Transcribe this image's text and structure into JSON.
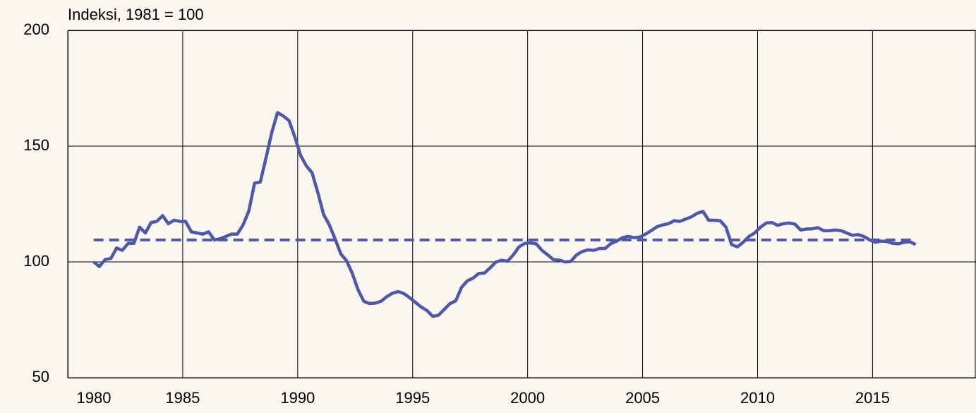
{
  "chart_data": {
    "type": "line",
    "title": "Indeksi, 1981 = 100",
    "xlim": [
      1980,
      2019.5
    ],
    "ylim": [
      50,
      200
    ],
    "xticks": [
      1980,
      1985,
      1990,
      1995,
      2000,
      2005,
      2010,
      2015
    ],
    "yticks": [
      50,
      100,
      150,
      200
    ],
    "grid": true,
    "x": [
      1981.125,
      1981.375,
      1981.625,
      1981.875,
      1982.125,
      1982.375,
      1982.625,
      1982.875,
      1983.125,
      1983.375,
      1983.625,
      1983.875,
      1984.125,
      1984.375,
      1984.625,
      1984.875,
      1985.125,
      1985.375,
      1985.625,
      1985.875,
      1986.125,
      1986.375,
      1986.625,
      1986.875,
      1987.125,
      1987.375,
      1987.625,
      1987.875,
      1988.125,
      1988.375,
      1988.625,
      1988.875,
      1989.125,
      1989.375,
      1989.625,
      1989.875,
      1990.125,
      1990.375,
      1990.625,
      1990.875,
      1991.125,
      1991.375,
      1991.625,
      1991.875,
      1992.125,
      1992.375,
      1992.625,
      1992.875,
      1993.125,
      1993.375,
      1993.625,
      1993.875,
      1994.125,
      1994.375,
      1994.625,
      1994.875,
      1995.125,
      1995.375,
      1995.625,
      1995.875,
      1996.125,
      1996.375,
      1996.625,
      1996.875,
      1997.125,
      1997.375,
      1997.625,
      1997.875,
      1998.125,
      1998.375,
      1998.625,
      1998.875,
      1999.125,
      1999.375,
      1999.625,
      1999.875,
      2000.125,
      2000.375,
      2000.625,
      2000.875,
      2001.125,
      2001.375,
      2001.625,
      2001.875,
      2002.125,
      2002.375,
      2002.625,
      2002.875,
      2003.125,
      2003.375,
      2003.625,
      2003.875,
      2004.125,
      2004.375,
      2004.625,
      2004.875,
      2005.125,
      2005.375,
      2005.625,
      2005.875,
      2006.125,
      2006.375,
      2006.625,
      2006.875,
      2007.125,
      2007.375,
      2007.625,
      2007.875,
      2008.125,
      2008.375,
      2008.625,
      2008.875,
      2009.125,
      2009.375,
      2009.625,
      2009.875,
      2010.125,
      2010.375,
      2010.625,
      2010.875,
      2011.125,
      2011.375,
      2011.625,
      2011.875,
      2012.125,
      2012.375,
      2012.625,
      2012.875,
      2013.125,
      2013.375,
      2013.625,
      2013.875,
      2014.125,
      2014.375,
      2014.625,
      2014.875,
      2015.125,
      2015.375,
      2015.625,
      2015.875,
      2016.125,
      2016.375,
      2016.625,
      2016.875
    ],
    "series": [
      {
        "color": "#4f58a6",
        "values": [
          100,
          98,
          101,
          101.5,
          106,
          105,
          108,
          108,
          115,
          112.5,
          117,
          117.5,
          120,
          116.5,
          118,
          117.5,
          117.5,
          113,
          112.5,
          112,
          113,
          109.5,
          110,
          111,
          112,
          112,
          116,
          122,
          134,
          134.5,
          145,
          156,
          164.5,
          163,
          161,
          154,
          146,
          141.5,
          138.5,
          130,
          120.5,
          116,
          110,
          103.5,
          100.5,
          95,
          88,
          83,
          82,
          82.2,
          83,
          85,
          86.5,
          87.2,
          86.3,
          84.5,
          82.5,
          80.5,
          79,
          76.5,
          77,
          79.5,
          82,
          83.2,
          89,
          91.8,
          93,
          95,
          95.2,
          97.5,
          100,
          100.7,
          100.3,
          103,
          106.5,
          108,
          108.2,
          107.8,
          105,
          103,
          101,
          100.8,
          100,
          100.2,
          103,
          104.5,
          105.2,
          105,
          105.8,
          105.8,
          108,
          109,
          110.5,
          111,
          110.5,
          110.7,
          112,
          113.5,
          115.2,
          116,
          116.5,
          117.8,
          117.5,
          118.5,
          119.5,
          121,
          121.8,
          118,
          118,
          117.8,
          115,
          107.5,
          106.5,
          108.5,
          111,
          112.5,
          115,
          116.8,
          117,
          115.8,
          116.5,
          116.8,
          116.3,
          113.8,
          114.2,
          114.3,
          114.8,
          113.5,
          113.5,
          113.8,
          113.5,
          112.5,
          111.5,
          111.8,
          111,
          109.5,
          108.5,
          109,
          108.8,
          108,
          107.8,
          108.5,
          108.7,
          107.5
        ]
      }
    ],
    "reference_line": {
      "color": "#4f58a6",
      "value": 109.5,
      "x": [
        1981.125,
        2016.875
      ]
    }
  }
}
